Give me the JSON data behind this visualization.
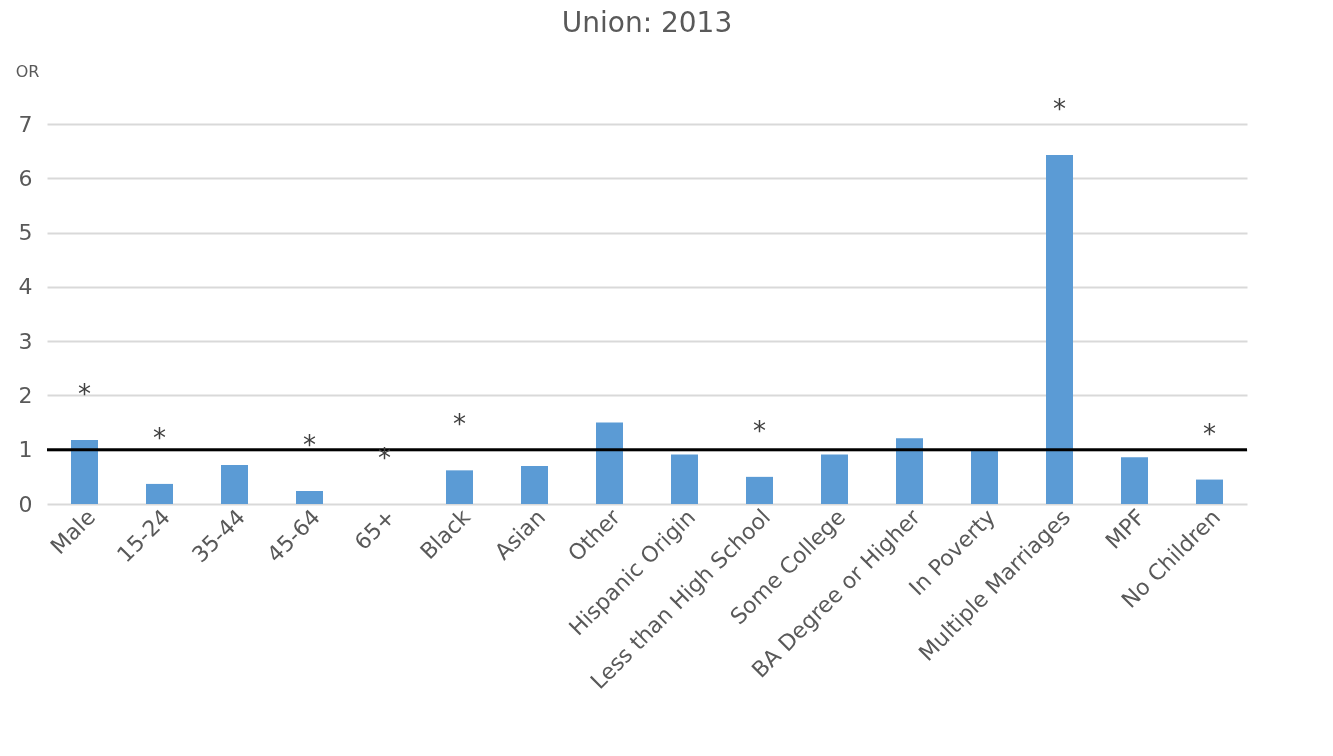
{
  "chart_data": {
    "type": "bar",
    "title": "Union: 2013",
    "ylabel": "OR",
    "categories": [
      "Male",
      "15-24",
      "35-44",
      "45-64",
      "65+",
      "Black",
      "Asian",
      "Other",
      "Hispanic Origin",
      "Less than High School",
      "Some College",
      "BA Degree or Higher",
      "In Poverty",
      "Multiple Marriages",
      "MPF",
      "No Children"
    ],
    "series": [
      {
        "color": "#5b9bd5",
        "values": [
          1.18,
          0.37,
          0.72,
          0.24,
          0,
          0.62,
          0.7,
          1.5,
          0.91,
          0.5,
          0.91,
          1.21,
          0.99,
          6.43,
          0.86,
          0.45
        ]
      }
    ],
    "value_labels": [
      "*",
      "*",
      null,
      "*",
      "*",
      "*",
      null,
      null,
      null,
      "*",
      null,
      null,
      null,
      "*",
      null,
      "*"
    ],
    "ylim": [
      0,
      7
    ],
    "yticks": [
      0,
      1,
      2,
      3,
      4,
      5,
      6,
      7
    ],
    "grid": "y",
    "ref_lines": [
      {
        "axis": "y",
        "value": 1,
        "color": "#000000",
        "line_style": "solid"
      }
    ]
  }
}
